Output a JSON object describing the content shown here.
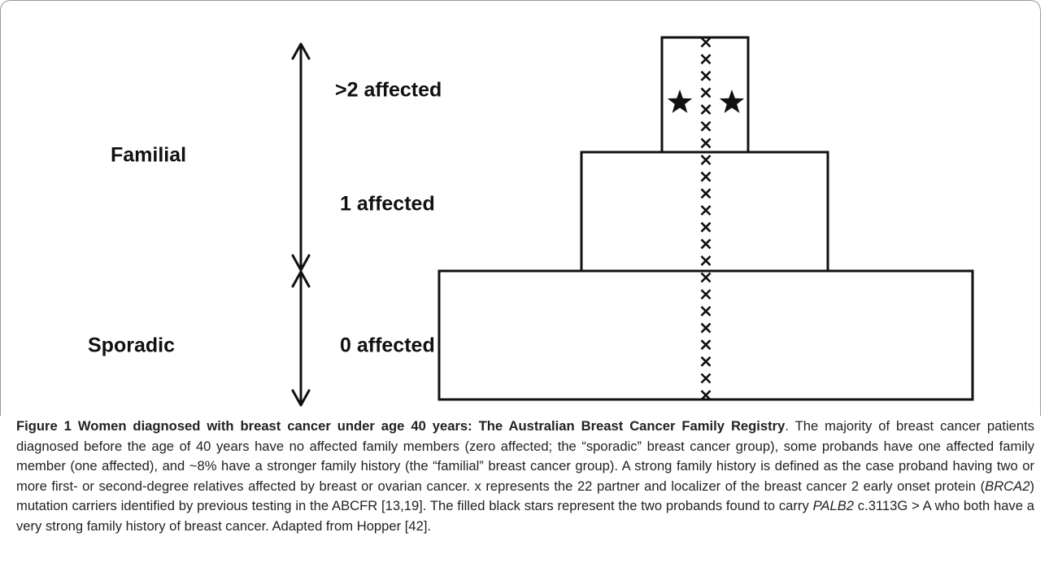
{
  "figure": {
    "left_labels": {
      "familial": "Familial",
      "sporadic": "Sporadic"
    },
    "tier_labels": {
      "top": ">2 affected",
      "middle": "1 affected",
      "bottom": "0 affected"
    }
  },
  "caption": {
    "segments": [
      {
        "text": "Figure 1 Women diagnosed with breast cancer under age 40 years: The Australian Breast Cancer Family Registry",
        "style": "bold"
      },
      {
        "text": ". The majority of breast cancer patients diagnosed before the age of 40 years have no affected family members (zero affected; the “sporadic” breast cancer group), some probands have one affected family member (one affected), and ~8% have a stronger family history (the “familial” breast cancer group). A strong family history is defined as the case proband having two or more first- or second-degree relatives affected by breast or ovarian cancer. x represents the 22 partner and localizer of the breast cancer 2 early onset protein (",
        "style": "normal"
      },
      {
        "text": "BRCA2",
        "style": "italic"
      },
      {
        "text": ") mutation carriers identified by previous testing in the ABCFR [13,19]. The filled black stars represent the two probands found to carry ",
        "style": "normal"
      },
      {
        "text": "PALB2",
        "style": "italic"
      },
      {
        "text": " c.3113G > A who both have a very strong family history of breast cancer. Adapted from Hopper [42].",
        "style": "normal"
      }
    ]
  }
}
